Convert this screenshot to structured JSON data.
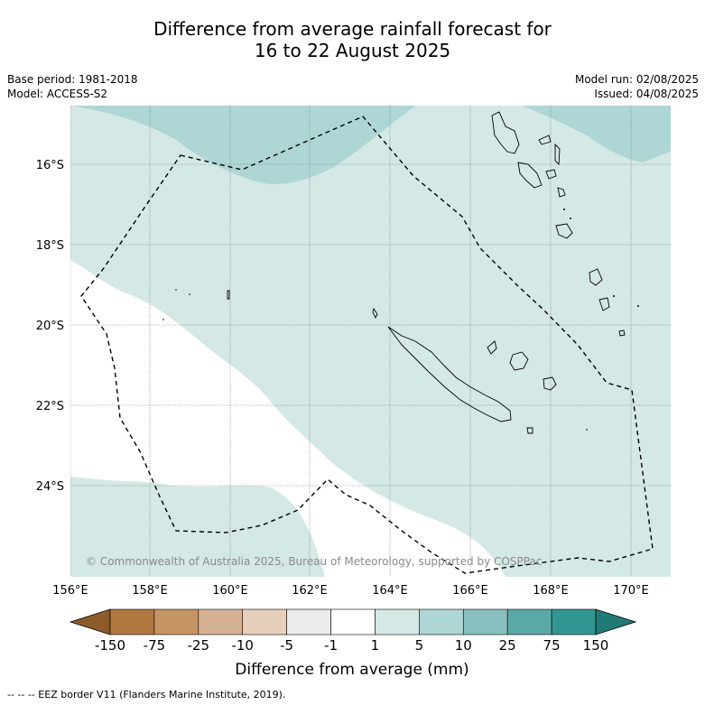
{
  "title_line1": "Difference from average rainfall forecast for",
  "title_line2": "16 to 22 August 2025",
  "base_period": "Base period: 1981-2018",
  "model": "Model: ACCESS-S2",
  "model_run": "Model run: 02/08/2025",
  "issued": "Issued: 04/08/2025",
  "copyright": "© Commonwealth of Australia 2025, Bureau of Meteorology, supported by COSPPac",
  "footnote": "--  --  -- EEZ border V11 (Flanders Marine Institute, 2019).",
  "map": {
    "lon_labels": [
      "156°E",
      "158°E",
      "160°E",
      "162°E",
      "164°E",
      "166°E",
      "168°E",
      "170°E"
    ],
    "lat_labels": [
      "16°S",
      "18°S",
      "20°S",
      "22°S",
      "24°S"
    ],
    "legend": {
      "title": "Difference from average (mm)",
      "tick_labels": [
        "-150",
        "-75",
        "-25",
        "-10",
        "-5",
        "-1",
        "1",
        "5",
        "10",
        "25",
        "75",
        "150"
      ],
      "colors": [
        "#8c5a2b",
        "#b07840",
        "#c59464",
        "#d5b294",
        "#e6d0bb",
        "#ebebeb",
        "#ffffff",
        "#d4e8e6",
        "#aed6d4",
        "#87c0be",
        "#5ba9a7",
        "#329792",
        "#207a76"
      ]
    },
    "shading": {
      "light_teal": "#d4e8e6",
      "mid_teal": "#aed6d4"
    }
  }
}
